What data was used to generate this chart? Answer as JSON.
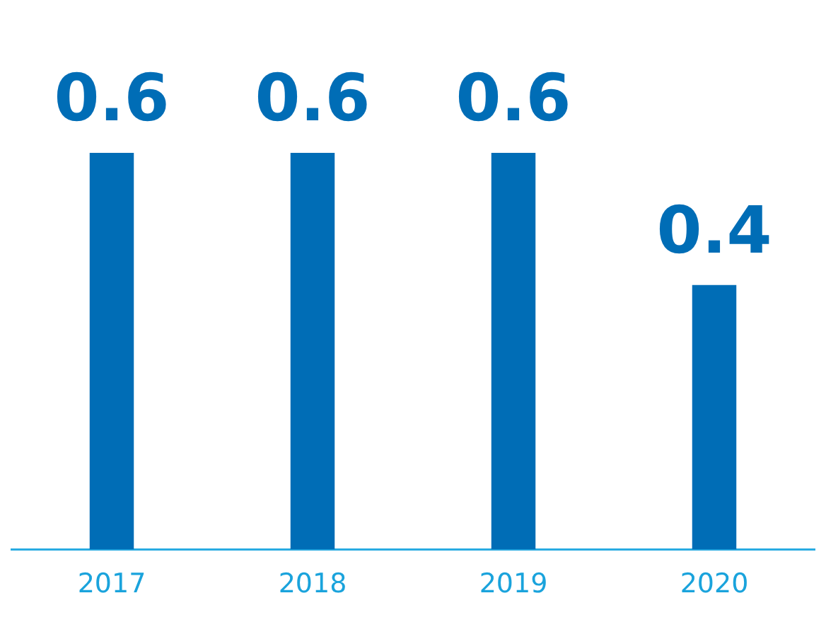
{
  "chart_data": {
    "type": "bar",
    "categories": [
      "2017",
      "2018",
      "2019",
      "2020"
    ],
    "values": [
      0.6,
      0.6,
      0.6,
      0.4
    ],
    "color": "#006db6",
    "data_labels": true,
    "grid": false,
    "legend": false,
    "tick_labels": "x"
  }
}
